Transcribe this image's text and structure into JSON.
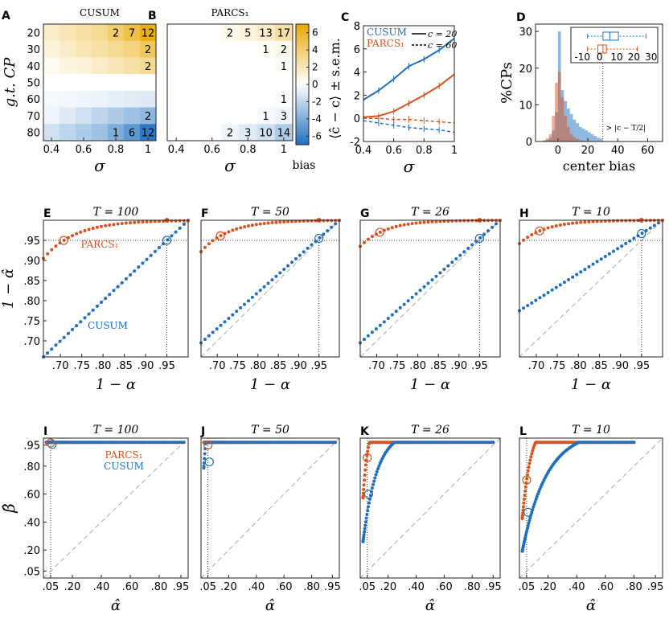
{
  "colors": {
    "cusum": "#1f6fbf",
    "parcs": "#d9531e",
    "ref": "#888888",
    "ref_dash": "#aaaaaa"
  },
  "chart_data": [
    {
      "panel": "A",
      "type": "heatmap",
      "title": "CUSUM",
      "xlabel": "σ",
      "ylabel": "g.t. CP",
      "x_ticks": [
        "0.4",
        "0.6",
        "0.8",
        "1"
      ],
      "sigma": [
        0.4,
        0.5,
        0.6,
        0.7,
        0.8,
        0.9,
        1.0
      ],
      "cp": [
        20,
        30,
        40,
        50,
        60,
        70,
        80
      ],
      "bias": [
        [
          1.5,
          2,
          2.5,
          3,
          4,
          5,
          6.5
        ],
        [
          1,
          1.5,
          2,
          2.5,
          3,
          3.5,
          4.5
        ],
        [
          0.5,
          0.8,
          1,
          1.5,
          2,
          2.5,
          3
        ],
        [
          0,
          0,
          0,
          0,
          0,
          0,
          0
        ],
        [
          -0.3,
          -0.4,
          -0.5,
          -0.6,
          -0.8,
          -0.9,
          -1
        ],
        [
          -0.5,
          -1,
          -1.5,
          -2,
          -2.5,
          -3,
          -3.5
        ],
        [
          -1.5,
          -2,
          -2.5,
          -3,
          -4,
          -5,
          -6.5
        ]
      ],
      "annotations": [
        {
          "row": 0,
          "col": 4,
          "text": "2"
        },
        {
          "row": 0,
          "col": 5,
          "text": "7"
        },
        {
          "row": 0,
          "col": 6,
          "text": "12"
        },
        {
          "row": 1,
          "col": 6,
          "text": "2"
        },
        {
          "row": 2,
          "col": 6,
          "text": "2"
        },
        {
          "row": 5,
          "col": 6,
          "text": "2"
        },
        {
          "row": 6,
          "col": 4,
          "text": "1"
        },
        {
          "row": 6,
          "col": 5,
          "text": "6"
        },
        {
          "row": 6,
          "col": 6,
          "text": "12"
        }
      ],
      "y_tick_labels": [
        "20",
        "30",
        "40",
        "50",
        "60",
        "70",
        "80"
      ]
    },
    {
      "panel": "B",
      "type": "heatmap",
      "title": "PARCS₁",
      "xlabel": "σ",
      "colorbar_label": "bias",
      "colorbar_ticks": [
        "6",
        "4",
        "2",
        "0",
        "-2",
        "-4",
        "-6"
      ],
      "clim": [
        -7,
        7
      ],
      "x_ticks": [
        "0.4",
        "0.6",
        "0.8",
        "1"
      ],
      "bias": [
        [
          0,
          0,
          0,
          0.5,
          1,
          1.5,
          2.5
        ],
        [
          0,
          0,
          0,
          0,
          0,
          0.3,
          0.5
        ],
        [
          0,
          0,
          0,
          0,
          0,
          0,
          0.2
        ],
        [
          0,
          0,
          0,
          0,
          0,
          0,
          0
        ],
        [
          0,
          0,
          0,
          0,
          0,
          0,
          -0.1
        ],
        [
          0,
          0,
          0,
          0,
          0,
          -0.3,
          -0.5
        ],
        [
          0,
          0,
          0,
          -0.5,
          -1,
          -1.5,
          -2.5
        ]
      ],
      "annotations": [
        {
          "row": 0,
          "col": 3,
          "text": "2"
        },
        {
          "row": 0,
          "col": 4,
          "text": "5"
        },
        {
          "row": 0,
          "col": 5,
          "text": "13"
        },
        {
          "row": 0,
          "col": 6,
          "text": "17"
        },
        {
          "row": 1,
          "col": 5,
          "text": "1"
        },
        {
          "row": 1,
          "col": 6,
          "text": "2"
        },
        {
          "row": 2,
          "col": 6,
          "text": "1"
        },
        {
          "row": 4,
          "col": 6,
          "text": "1"
        },
        {
          "row": 5,
          "col": 5,
          "text": "1"
        },
        {
          "row": 5,
          "col": 6,
          "text": "3"
        },
        {
          "row": 6,
          "col": 3,
          "text": "2"
        },
        {
          "row": 6,
          "col": 4,
          "text": "3"
        },
        {
          "row": 6,
          "col": 5,
          "text": "10"
        },
        {
          "row": 6,
          "col": 6,
          "text": "14"
        }
      ]
    },
    {
      "panel": "C",
      "type": "line",
      "xlabel": "σ",
      "ylabel": "⟨ĉ − c⟩ ± s.e.m.",
      "xlim": [
        0.4,
        1.0
      ],
      "ylim": [
        -2,
        8
      ],
      "x_ticks": [
        "0.4",
        "0.6",
        "0.8",
        "1"
      ],
      "y_ticks": [
        "-2",
        "0",
        "2",
        "4",
        "6",
        "8"
      ],
      "x": [
        0.4,
        0.5,
        0.6,
        0.7,
        0.8,
        0.9,
        1.0
      ],
      "legend": [
        "CUSUM",
        "PARCS₁",
        "c = 20",
        "c = 60"
      ],
      "series": [
        {
          "name": "CUSUM c=20",
          "style": "solid",
          "values": [
            1.6,
            2.4,
            3.4,
            4.5,
            5.1,
            5.9,
            6.9
          ]
        },
        {
          "name": "PARCS c=20",
          "style": "solid",
          "values": [
            0.1,
            0.2,
            0.6,
            1.3,
            2.0,
            2.8,
            3.8
          ]
        },
        {
          "name": "PARCS c=60",
          "style": "dashed",
          "values": [
            0,
            0,
            -0.1,
            -0.1,
            -0.2,
            -0.3,
            -0.4
          ]
        },
        {
          "name": "CUSUM c=60",
          "style": "dashed",
          "values": [
            -0.2,
            -0.4,
            -0.6,
            -0.8,
            -0.9,
            -1.0,
            -1.2
          ]
        }
      ]
    },
    {
      "panel": "D",
      "type": "histogram",
      "xlabel": "center bias",
      "ylabel": "%CPs",
      "x_ticks": [
        "0",
        "20",
        "40",
        "60"
      ],
      "y_ticks": [
        "0",
        "10",
        "20",
        "30"
      ],
      "xlim": [
        -15,
        70
      ],
      "ylim": [
        0,
        32
      ],
      "annotation": "> |c − T/2|",
      "inset_ticks": [
        "-10",
        "0",
        "10",
        "20",
        "30"
      ],
      "inset": {
        "cusum": {
          "whisker_low": -7,
          "q1": 2,
          "median": 6,
          "q3": 11,
          "whisker_high": 27
        },
        "parcs": {
          "whisker_low": -7,
          "q1": -1,
          "median": 2,
          "q3": 4,
          "whisker_high": 22
        }
      },
      "bins_left": [
        -10,
        -8,
        -6,
        -4,
        -2,
        0,
        2,
        4,
        6,
        8,
        10,
        12,
        14,
        16,
        18,
        20,
        22,
        24,
        26,
        28
      ],
      "cusum": [
        0.3,
        0.5,
        1,
        3,
        8,
        30,
        14,
        11,
        9,
        7.5,
        6,
        5,
        4,
        3.5,
        3,
        2.5,
        2,
        1.5,
        1,
        0.8
      ],
      "parcs": [
        0.3,
        0.8,
        2,
        7,
        16,
        19,
        12,
        7,
        4,
        2,
        1.2,
        0.7,
        0.4,
        0.2,
        0.1,
        0,
        0,
        0,
        0,
        0
      ]
    },
    {
      "panel": "E",
      "type": "scatter",
      "title": "T = 100",
      "xlabel": "1 − α",
      "ylabel": "1 − α̂",
      "ref_value": 0.95,
      "x_ticks": [
        ".70",
        ".75",
        ".80",
        ".85",
        ".90",
        ".95"
      ],
      "y_ticks": [
        ".70",
        ".75",
        ".80",
        ".85",
        ".90",
        ".95"
      ],
      "legend": [
        "PARCS₁",
        "CUSUM"
      ],
      "cusum_start": 0.66,
      "parcs_start": 0.905,
      "parcs_k": 0.22
    },
    {
      "panel": "F",
      "type": "scatter",
      "title": "T = 50",
      "xlabel": "1 − α",
      "ref_value": 0.95,
      "x_ticks": [
        ".70",
        ".75",
        ".80",
        ".85",
        ".90",
        ".95"
      ],
      "cusum_start": 0.695,
      "parcs_start": 0.922,
      "parcs_k": 0.2
    },
    {
      "panel": "G",
      "type": "scatter",
      "title": "T = 26",
      "xlabel": "1 − α",
      "ref_value": 0.95,
      "x_ticks": [
        ".70",
        ".75",
        ".80",
        ".85",
        ".90",
        ".95"
      ],
      "cusum_start": 0.695,
      "parcs_start": 0.935,
      "parcs_k": 0.18
    },
    {
      "panel": "H",
      "type": "scatter",
      "title": "T = 10",
      "xlabel": "1 − α",
      "ref_value": 0.95,
      "x_ticks": [
        ".70",
        ".75",
        ".80",
        ".85",
        ".90",
        ".95"
      ],
      "cusum_start": 0.775,
      "parcs_start": 0.942,
      "parcs_k": 0.18
    },
    {
      "panel": "I",
      "type": "roc",
      "title": "T = 100",
      "xlabel": "α̂",
      "ylabel": "β̂",
      "x_ticks": [
        ".05",
        ".20",
        ".40",
        ".60",
        ".80",
        ".95"
      ],
      "y_ticks": [
        ".05",
        ".20",
        ".40",
        ".60",
        ".80",
        ".95"
      ],
      "legend": [
        "PARCS₁",
        "CUSUM"
      ],
      "cusum_k": 0.008,
      "parcs_k": 0.006,
      "cusum_sel": 0.955,
      "parcs_sel": 0.965,
      "xmax": 0.97
    },
    {
      "panel": "J",
      "type": "roc",
      "title": "T = 50",
      "xlabel": "α̂",
      "x_ticks": [
        ".05",
        ".20",
        ".40",
        ".60",
        ".80",
        ".95"
      ],
      "cusum_k": 0.025,
      "parcs_k": 0.015,
      "cusum_sel": 0.83,
      "parcs_sel": 0.95,
      "xmax": 0.97
    },
    {
      "panel": "K",
      "type": "roc",
      "title": "T = 26",
      "xlabel": "α̂",
      "x_ticks": [
        ".05",
        ".20",
        ".40",
        ".60",
        ".80",
        ".95"
      ],
      "cusum_k": 0.1,
      "parcs_k": 0.035,
      "cusum_sel": 0.6,
      "parcs_sel": 0.86,
      "xmax": 0.95
    },
    {
      "panel": "L",
      "type": "roc",
      "title": "T = 10",
      "xlabel": "α̂",
      "x_ticks": [
        ".05",
        ".20",
        ".40",
        ".60",
        ".80",
        ".95"
      ],
      "cusum_k": 0.17,
      "parcs_k": 0.06,
      "cusum_sel": 0.47,
      "parcs_sel": 0.7,
      "xmax": 0.8
    }
  ]
}
